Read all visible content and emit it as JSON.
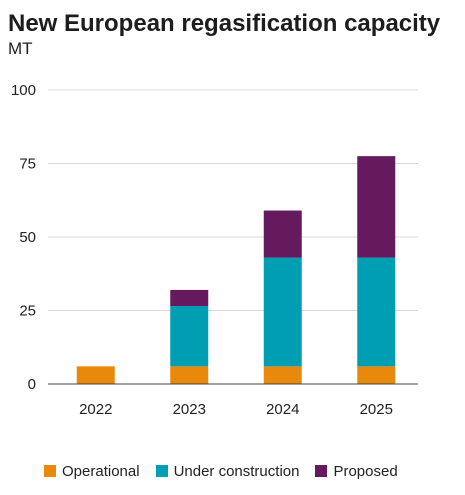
{
  "chart_data": {
    "type": "bar",
    "stacked": true,
    "title": "New European regasification capacity",
    "subtitle": "MT",
    "categories": [
      "2022",
      "2023",
      "2024",
      "2025"
    ],
    "series": [
      {
        "name": "Operational",
        "color": "#E8890C",
        "values": [
          6,
          6,
          6,
          6
        ]
      },
      {
        "name": "Under construction",
        "color": "#009EB2",
        "values": [
          0,
          20.5,
          37,
          37
        ]
      },
      {
        "name": "Proposed",
        "color": "#651A5E",
        "values": [
          0,
          5.5,
          16,
          34.5
        ]
      }
    ],
    "ylim": [
      0,
      100
    ],
    "yticks": [
      0,
      25,
      50,
      75,
      100
    ],
    "grid": true,
    "legend_position": "bottom"
  }
}
